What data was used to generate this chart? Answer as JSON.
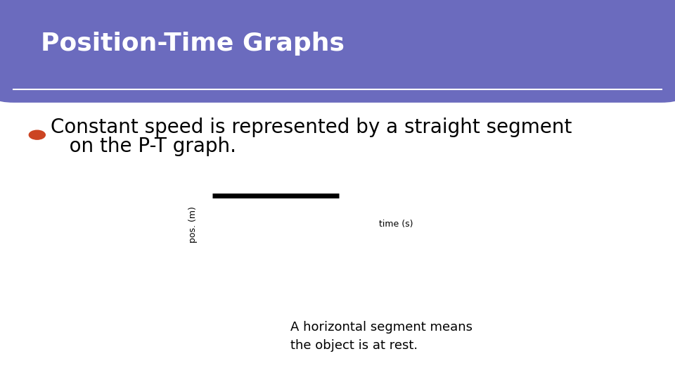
{
  "title": "Position-Time Graphs",
  "title_bg_color": "#6B6BBE",
  "title_text_color": "#FFFFFF",
  "slide_bg_color": "#FFFFFF",
  "slide_border_color": "#5A9A9A",
  "bullet_color": "#CC4422",
  "bullet_text_line1": "Constant speed is represented by a straight segment",
  "bullet_text_line2": "   on the P-T graph.",
  "bullet_fontsize": 20,
  "axis_xlabel": "time (s)",
  "axis_ylabel": "pos. (m)",
  "annotation_text": "A horizontal segment means\nthe object is at rest.",
  "annotation_fontsize": 13,
  "segment_linewidth": 5,
  "segment_color": "#000000",
  "axis_color": "#000000",
  "axis_linewidth": 1.8,
  "title_fontsize": 26
}
